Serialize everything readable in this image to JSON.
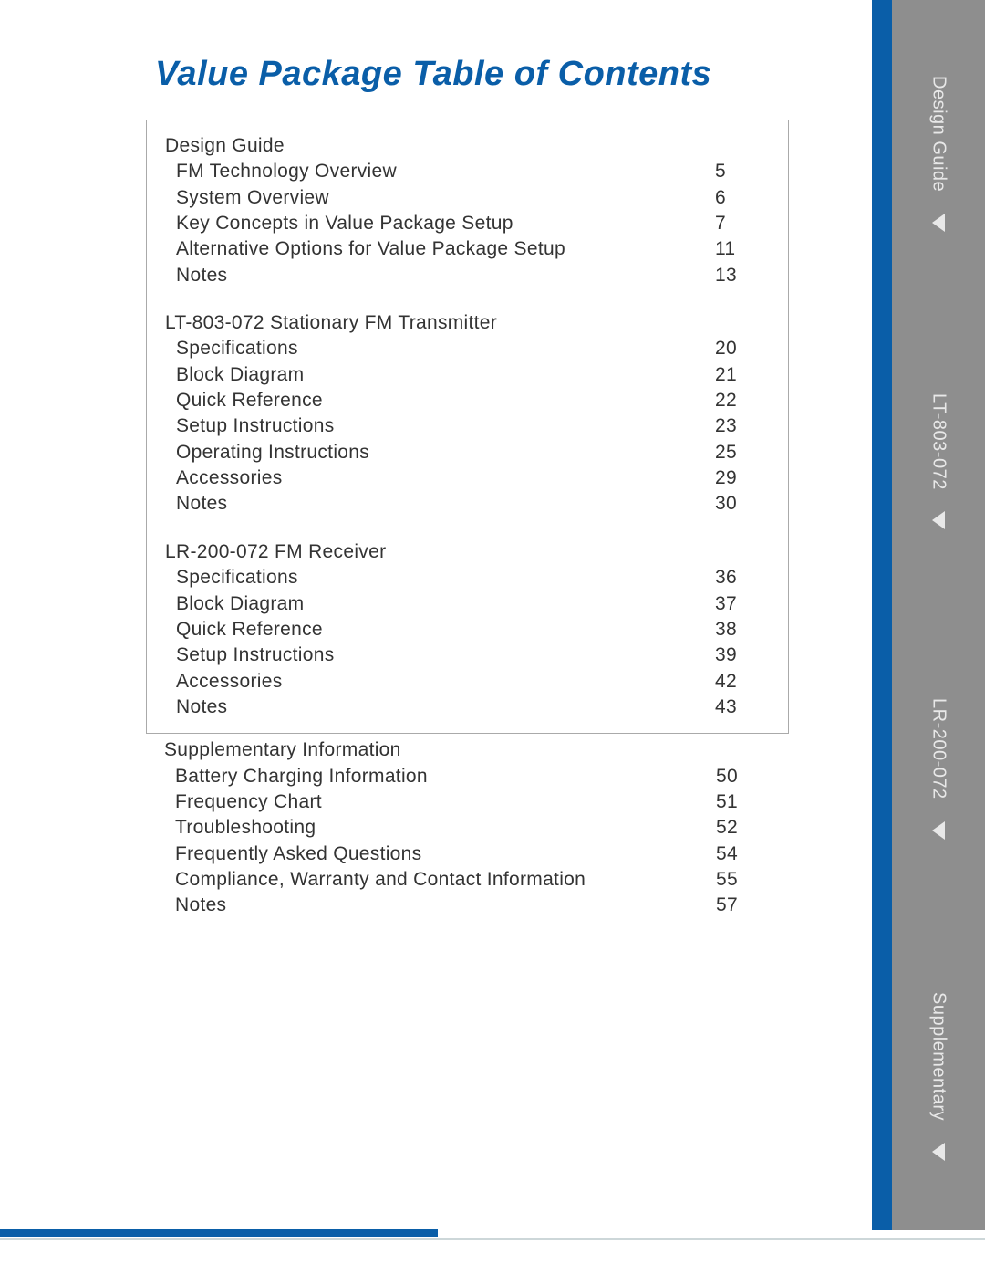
{
  "title": "Value Package Table of Contents",
  "title_color": "#0a5ea8",
  "blue_rule_color": "#0a5ea8",
  "tab_bg": "#8e8e8e",
  "tab_text_color": "#e8e8e8",
  "tabs": [
    {
      "label": "Design Guide"
    },
    {
      "label": "LT-803-072"
    },
    {
      "label": "LR-200-072"
    },
    {
      "label": "Supplementary"
    }
  ],
  "boxed_sections": [
    {
      "heading": "Design Guide",
      "items": [
        {
          "label": "FM Technology Overview",
          "page": "5"
        },
        {
          "label": "System Overview",
          "page": "6"
        },
        {
          "label": "Key Concepts in Value Package Setup",
          "page": "7"
        },
        {
          "label": "Alternative Options for Value Package Setup",
          "page": "11"
        },
        {
          "label": "Notes",
          "page": "13"
        }
      ]
    },
    {
      "heading": "LT-803-072 Stationary FM Transmitter",
      "items": [
        {
          "label": "Specifications",
          "page": "20"
        },
        {
          "label": "Block Diagram",
          "page": "21"
        },
        {
          "label": "Quick Reference",
          "page": "22"
        },
        {
          "label": "Setup Instructions",
          "page": "23"
        },
        {
          "label": "Operating Instructions",
          "page": "25"
        },
        {
          "label": "Accessories",
          "page": "29"
        },
        {
          "label": "Notes",
          "page": "30"
        }
      ]
    },
    {
      "heading": "LR-200-072 FM Receiver",
      "items": [
        {
          "label": "Specifications",
          "page": "36"
        },
        {
          "label": "Block Diagram",
          "page": "37"
        },
        {
          "label": "Quick Reference",
          "page": "38"
        },
        {
          "label": "Setup Instructions",
          "page": "39"
        },
        {
          "label": "Accessories",
          "page": "42"
        },
        {
          "label": "Notes",
          "page": "43"
        }
      ]
    }
  ],
  "unboxed_section": {
    "heading": "Supplementary Information",
    "items": [
      {
        "label": "Battery Charging Information",
        "page": "50"
      },
      {
        "label": "Frequency Chart",
        "page": "51"
      },
      {
        "label": "Troubleshooting",
        "page": "52"
      },
      {
        "label": "Frequently Asked Questions",
        "page": "54"
      },
      {
        "label": "Compliance, Warranty and Contact Information",
        "page": "55"
      },
      {
        "label": "Notes",
        "page": "57"
      }
    ]
  }
}
